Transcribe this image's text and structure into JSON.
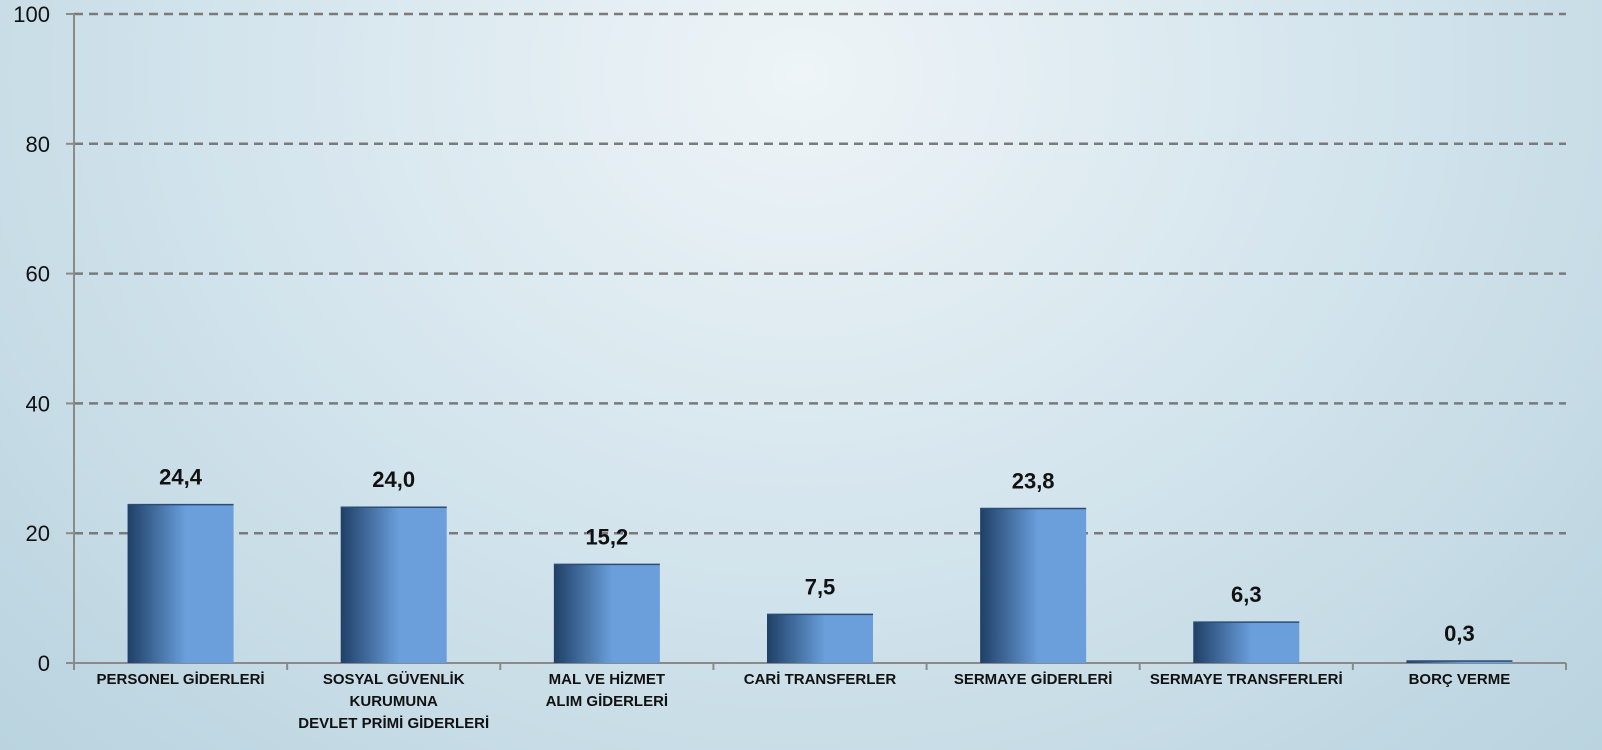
{
  "chart_data": {
    "type": "bar",
    "categories": [
      [
        "PERSONEL GİDERLERİ"
      ],
      [
        "SOSYAL GÜVENLİK",
        "KURUMUNA",
        "DEVLET PRİMİ GİDERLERİ"
      ],
      [
        "MAL VE HİZMET",
        "ALIM GİDERLERİ"
      ],
      [
        "CARİ TRANSFERLER"
      ],
      [
        "SERMAYE GİDERLERİ"
      ],
      [
        "SERMAYE TRANSFERLERİ"
      ],
      [
        "BORÇ VERME"
      ]
    ],
    "values": [
      24.4,
      24.0,
      15.2,
      7.5,
      23.8,
      6.3,
      0.3
    ],
    "value_labels": [
      "24,4",
      "24,0",
      "15,2",
      "7,5",
      "23,8",
      "6,3",
      "0,3"
    ],
    "yticks": [
      0,
      20,
      40,
      60,
      80,
      100
    ],
    "ylim": [
      0,
      100
    ],
    "grid": "horizontal-dashed",
    "colors": {
      "bar_dark": "#1f3f66",
      "bar_light": "#6a9fdc",
      "grid": "#7a7a7a",
      "axis": "#8a8a8a"
    }
  }
}
